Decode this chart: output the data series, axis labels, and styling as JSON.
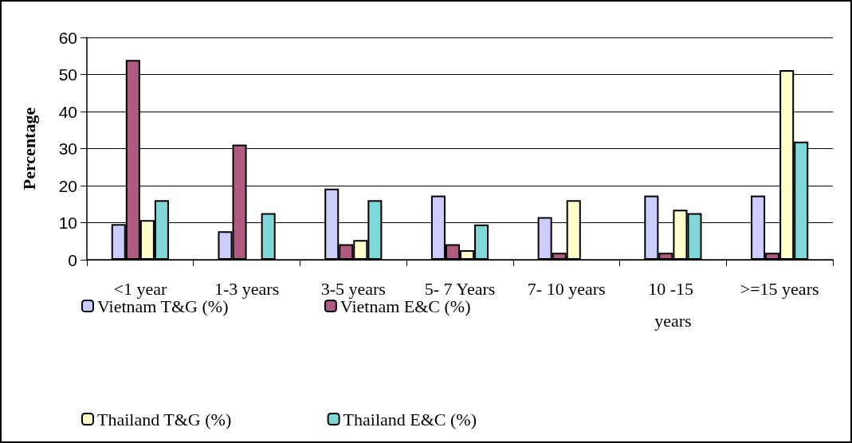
{
  "chart_data": {
    "type": "bar",
    "ylabel": "Percentage",
    "categories": [
      "<1 year",
      "1-3 years",
      "3-5 years",
      "5- 7 Years",
      "7- 10 years",
      "10 -15 years",
      ">=15 years"
    ],
    "series": [
      {
        "name": "Vietnam T&G (%)",
        "color": "#ccccff",
        "values": [
          9.6,
          7.7,
          19.2,
          17.3,
          11.5,
          17.3,
          17.3
        ]
      },
      {
        "name": "Vietnam E&C (%)",
        "color": "#b05a80",
        "values": [
          53.9,
          31.1,
          4.2,
          4.2,
          1.9,
          1.9,
          1.9
        ]
      },
      {
        "name": "Thailand T&G (%)",
        "color": "#ffffcc",
        "values": [
          10.7,
          null,
          5.3,
          2.6,
          16.1,
          13.5,
          51.2
        ]
      },
      {
        "name": "Thailand E&C (%)",
        "color": "#7fd8d8",
        "values": [
          16.1,
          12.6,
          16.1,
          9.5,
          null,
          12.6,
          31.9
        ]
      }
    ],
    "ylim": [
      0,
      60
    ],
    "yticks": [
      0,
      10,
      20,
      30,
      40,
      50,
      60
    ],
    "grid": "y",
    "legend": "bottom left"
  }
}
